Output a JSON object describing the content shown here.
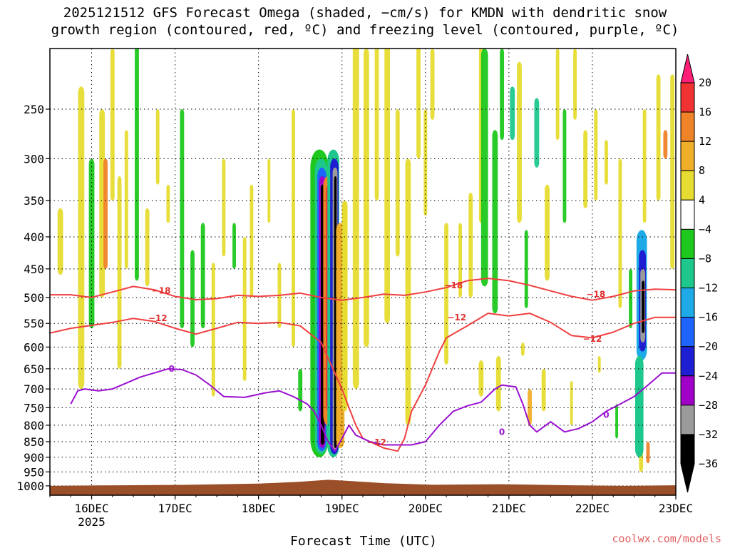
{
  "chart_data": {
    "type": "heatmap",
    "title_line1": "2025121512 GFS Forecast Omega (shaded, −cm/s) for KMDN with dendritic snow",
    "title_line2": "growth region (contoured, red, ºC) and freezing level (contoured, purple, ºC)",
    "xlabel": "Forecast Time (UTC)",
    "x_ticks": [
      {
        "label": "16DEC",
        "sub": "2025",
        "hour": 12
      },
      {
        "label": "17DEC",
        "sub": "",
        "hour": 36
      },
      {
        "label": "18DEC",
        "sub": "",
        "hour": 60
      },
      {
        "label": "19DEC",
        "sub": "",
        "hour": 84
      },
      {
        "label": "20DEC",
        "sub": "",
        "hour": 108
      },
      {
        "label": "21DEC",
        "sub": "",
        "hour": 132
      },
      {
        "label": "22DEC",
        "sub": "",
        "hour": 156
      },
      {
        "label": "23DEC",
        "sub": "",
        "hour": 180
      }
    ],
    "xlim_hours": [
      0,
      180
    ],
    "y_ticks": [
      250,
      300,
      350,
      400,
      450,
      500,
      550,
      600,
      650,
      700,
      750,
      800,
      850,
      900,
      950,
      1000
    ],
    "ylim_hpa": [
      200,
      1035
    ],
    "y_scale": "log",
    "colorbar": {
      "labels": [
        "20",
        "16",
        "12",
        "8",
        "4",
        "−4",
        "−8",
        "−12",
        "−16",
        "−20",
        "−24",
        "−28",
        "−32",
        "−36"
      ],
      "colors": [
        "#ff1e78",
        "#f03232",
        "#f08228",
        "#f0af28",
        "#e6dc32",
        "#ffffff",
        "#1ec81e",
        "#1ec88c",
        "#1eaae6",
        "#1e64ff",
        "#1e1ed2",
        "#a000c8",
        "#9b9b9b",
        "#000000"
      ]
    },
    "contour_labels": {
      "minus18": "−18",
      "minus12": "−12",
      "zero": "0"
    },
    "dgz_minus18_hpa": [
      [
        0,
        495
      ],
      [
        6,
        495
      ],
      [
        12,
        500
      ],
      [
        18,
        490
      ],
      [
        24,
        480
      ],
      [
        30,
        486
      ],
      [
        36,
        498
      ],
      [
        42,
        504
      ],
      [
        48,
        502
      ],
      [
        54,
        496
      ],
      [
        60,
        498
      ],
      [
        66,
        496
      ],
      [
        72,
        492
      ],
      [
        78,
        500
      ],
      [
        84,
        505
      ],
      [
        90,
        500
      ],
      [
        96,
        494
      ],
      [
        102,
        496
      ],
      [
        108,
        490
      ],
      [
        114,
        482
      ],
      [
        120,
        470
      ],
      [
        126,
        466
      ],
      [
        132,
        470
      ],
      [
        138,
        478
      ],
      [
        144,
        488
      ],
      [
        150,
        498
      ],
      [
        156,
        505
      ],
      [
        162,
        498
      ],
      [
        168,
        488
      ],
      [
        174,
        485
      ],
      [
        180,
        486
      ]
    ],
    "dgz_minus12_hpa": [
      [
        0,
        570
      ],
      [
        6,
        560
      ],
      [
        12,
        554
      ],
      [
        18,
        548
      ],
      [
        24,
        540
      ],
      [
        30,
        546
      ],
      [
        36,
        560
      ],
      [
        42,
        572
      ],
      [
        48,
        560
      ],
      [
        54,
        548
      ],
      [
        60,
        550
      ],
      [
        66,
        548
      ],
      [
        72,
        555
      ],
      [
        78,
        590
      ],
      [
        84,
        700
      ],
      [
        86,
        750
      ],
      [
        88,
        800
      ],
      [
        90,
        840
      ],
      [
        96,
        870
      ],
      [
        100,
        880
      ],
      [
        102,
        840
      ],
      [
        104,
        760
      ],
      [
        108,
        690
      ],
      [
        112,
        610
      ],
      [
        114,
        580
      ],
      [
        120,
        555
      ],
      [
        126,
        530
      ],
      [
        132,
        535
      ],
      [
        138,
        530
      ],
      [
        144,
        548
      ],
      [
        150,
        575
      ],
      [
        156,
        580
      ],
      [
        162,
        568
      ],
      [
        168,
        550
      ],
      [
        174,
        538
      ],
      [
        180,
        538
      ]
    ],
    "freezing_0c_hpa": [
      [
        6,
        740
      ],
      [
        8,
        705
      ],
      [
        10,
        700
      ],
      [
        14,
        705
      ],
      [
        18,
        700
      ],
      [
        22,
        685
      ],
      [
        26,
        670
      ],
      [
        30,
        660
      ],
      [
        34,
        650
      ],
      [
        38,
        652
      ],
      [
        42,
        665
      ],
      [
        46,
        690
      ],
      [
        50,
        720
      ],
      [
        56,
        722
      ],
      [
        62,
        710
      ],
      [
        66,
        705
      ],
      [
        70,
        720
      ],
      [
        74,
        740
      ],
      [
        76,
        760
      ],
      [
        78,
        800
      ],
      [
        80,
        850
      ],
      [
        82,
        880
      ],
      [
        84,
        840
      ],
      [
        86,
        800
      ],
      [
        88,
        830
      ],
      [
        92,
        850
      ],
      [
        96,
        860
      ],
      [
        100,
        860
      ],
      [
        104,
        860
      ],
      [
        108,
        850
      ],
      [
        112,
        800
      ],
      [
        116,
        760
      ],
      [
        120,
        745
      ],
      [
        124,
        735
      ],
      [
        128,
        700
      ],
      [
        130,
        690
      ],
      [
        134,
        695
      ],
      [
        136,
        740
      ],
      [
        138,
        800
      ],
      [
        140,
        820
      ],
      [
        144,
        790
      ],
      [
        148,
        820
      ],
      [
        152,
        810
      ],
      [
        156,
        790
      ],
      [
        160,
        760
      ],
      [
        164,
        740
      ],
      [
        168,
        720
      ],
      [
        172,
        690
      ],
      [
        176,
        660
      ],
      [
        180,
        660
      ]
    ]
  },
  "credit": "coolwx.com/models"
}
